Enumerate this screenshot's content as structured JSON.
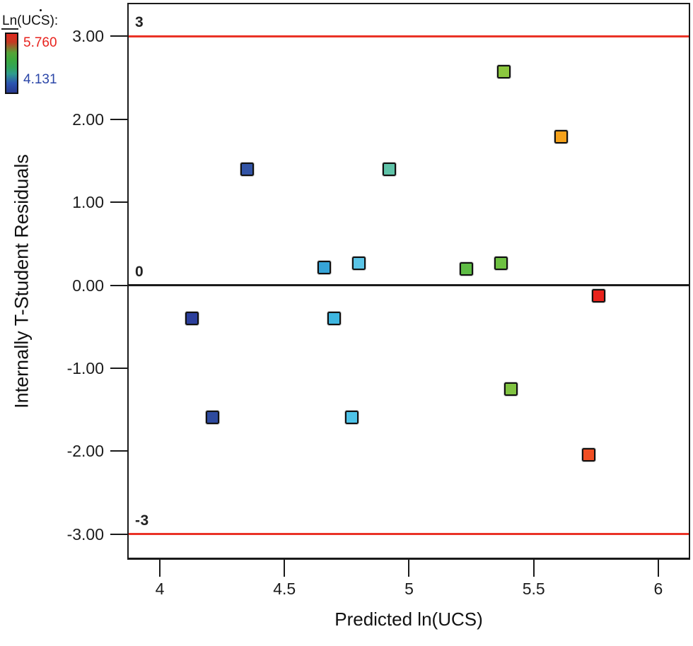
{
  "legend": {
    "title": "Ln(UCS):",
    "max_label": "5.760",
    "min_label": "4.131",
    "max_color": "#e8231e",
    "min_color": "#2b46a8"
  },
  "chart_data": {
    "type": "scatter",
    "title": "",
    "xlabel": "Predicted ln(UCS)",
    "ylabel": "Internally T-Student Residuals",
    "marker": "square",
    "grid": false,
    "legend_position": "top-left-outside",
    "color_scale": {
      "label": "Ln(UCS)",
      "min": 4.131,
      "max": 5.76,
      "min_color": "blue",
      "max_color": "red"
    },
    "xlim": [
      3.8752,
      6.1221
    ],
    "ylim": [
      -3.2814,
      3.3837
    ],
    "x_ticks": [
      {
        "value": 4,
        "label": "4"
      },
      {
        "value": 4.5,
        "label": "4.5"
      },
      {
        "value": 5,
        "label": "5"
      },
      {
        "value": 5.5,
        "label": "5.5"
      },
      {
        "value": 6,
        "label": "6"
      }
    ],
    "y_ticks": [
      {
        "value": 3,
        "label": "3.00"
      },
      {
        "value": 2,
        "label": "2.00"
      },
      {
        "value": 1,
        "label": "1.00"
      },
      {
        "value": 0,
        "label": "0.00"
      },
      {
        "value": -1,
        "label": "-1.00"
      },
      {
        "value": -2,
        "label": "-2.00"
      },
      {
        "value": -3,
        "label": "-3.00"
      }
    ],
    "reference_lines": [
      {
        "value": 3,
        "label": "3",
        "color": "#ea3226"
      },
      {
        "value": 0,
        "label": "0",
        "color": "#1b1b1b"
      },
      {
        "value": -3,
        "label": "-3",
        "color": "#ea3226"
      }
    ],
    "points": [
      {
        "x": 4.13,
        "y": -0.4,
        "color": "#2c3f9c"
      },
      {
        "x": 4.21,
        "y": -1.59,
        "color": "#2e4a9e"
      },
      {
        "x": 4.35,
        "y": 1.4,
        "color": "#3254a6"
      },
      {
        "x": 4.66,
        "y": 0.21,
        "color": "#36a4d8"
      },
      {
        "x": 4.7,
        "y": -0.4,
        "color": "#3eb6e0"
      },
      {
        "x": 4.77,
        "y": -1.59,
        "color": "#4ec3e8"
      },
      {
        "x": 4.8,
        "y": 0.26,
        "color": "#5ac4e6"
      },
      {
        "x": 4.92,
        "y": 1.4,
        "color": "#5fc3a8"
      },
      {
        "x": 5.23,
        "y": 0.2,
        "color": "#5ebc44"
      },
      {
        "x": 5.37,
        "y": 0.26,
        "color": "#6ec142"
      },
      {
        "x": 5.38,
        "y": 2.57,
        "color": "#8bc63e"
      },
      {
        "x": 5.41,
        "y": -1.25,
        "color": "#80c341"
      },
      {
        "x": 5.61,
        "y": 1.79,
        "color": "#f5a21c"
      },
      {
        "x": 5.72,
        "y": -2.04,
        "color": "#f04e23"
      },
      {
        "x": 5.76,
        "y": -0.13,
        "color": "#e8221c"
      }
    ]
  }
}
